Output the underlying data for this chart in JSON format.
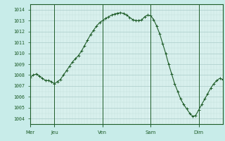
{
  "background_color": "#c8ece9",
  "plot_bg_color": "#d8f0ed",
  "grid_color_major": "#aaccc8",
  "grid_color_minor": "#c0deda",
  "line_color": "#1e5c28",
  "marker_color": "#1e5c28",
  "ylabel_color": "#1e5c28",
  "xlabel_color": "#1e5c28",
  "tick_color": "#1e5c28",
  "spine_color": "#1e5c28",
  "ylim": [
    1003.5,
    1014.5
  ],
  "yticks": [
    1004,
    1005,
    1006,
    1007,
    1008,
    1009,
    1010,
    1011,
    1012,
    1013,
    1014
  ],
  "day_labels": [
    "Mer",
    "Jeu",
    "Ven",
    "Sam",
    "Dim"
  ],
  "day_vline_positions": [
    0,
    8,
    24,
    40,
    56
  ],
  "total_points": 65,
  "xlim": [
    0,
    64
  ],
  "y_data": [
    1007.8,
    1008.0,
    1008.1,
    1007.9,
    1007.7,
    1007.5,
    1007.5,
    1007.4,
    1007.2,
    1007.4,
    1007.6,
    1008.0,
    1008.4,
    1008.8,
    1009.2,
    1009.5,
    1009.8,
    1010.2,
    1010.7,
    1011.2,
    1011.7,
    1012.1,
    1012.5,
    1012.8,
    1013.0,
    1013.2,
    1013.35,
    1013.5,
    1013.6,
    1013.68,
    1013.72,
    1013.65,
    1013.5,
    1013.3,
    1013.1,
    1013.0,
    1013.0,
    1013.05,
    1013.35,
    1013.5,
    1013.45,
    1013.1,
    1012.5,
    1011.8,
    1010.9,
    1010.0,
    1009.0,
    1008.1,
    1007.2,
    1006.5,
    1005.8,
    1005.3,
    1004.9,
    1004.5,
    1004.2,
    1004.3,
    1004.8,
    1005.3,
    1005.8,
    1006.3,
    1006.8,
    1007.2,
    1007.5,
    1007.7,
    1007.6
  ]
}
